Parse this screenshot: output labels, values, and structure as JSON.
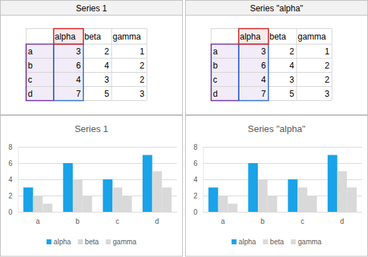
{
  "panels": [
    {
      "header": "Series 1",
      "table": {
        "columns": [
          "alpha",
          "beta",
          "gamma"
        ],
        "rows": [
          [
            "a",
            3,
            2,
            1
          ],
          [
            "b",
            6,
            4,
            2
          ],
          [
            "c",
            4,
            3,
            2
          ],
          [
            "d",
            7,
            5,
            3
          ]
        ]
      }
    },
    {
      "header": "Series \"alpha\"",
      "table": {
        "columns": [
          "alpha",
          "beta",
          "gamma"
        ],
        "rows": [
          [
            "a",
            3,
            2,
            1
          ],
          [
            "b",
            6,
            4,
            2
          ],
          [
            "c",
            4,
            3,
            2
          ],
          [
            "d",
            7,
            5,
            3
          ]
        ]
      }
    }
  ],
  "chart_data": [
    {
      "type": "bar",
      "title": "Series 1",
      "categories": [
        "a",
        "b",
        "c",
        "d"
      ],
      "series": [
        {
          "name": "alpha",
          "color": "#1aa3e8",
          "values": [
            3,
            6,
            4,
            7
          ]
        },
        {
          "name": "beta",
          "color": "#d9d9d9",
          "values": [
            2,
            4,
            3,
            5
          ]
        },
        {
          "name": "gamma",
          "color": "#d9d9d9",
          "values": [
            1,
            2,
            2,
            3
          ]
        }
      ],
      "ylim": [
        0,
        8
      ],
      "yticks": [
        0,
        2,
        4,
        6,
        8
      ],
      "grid": true,
      "legend": "bottom"
    },
    {
      "type": "bar",
      "title": "Series \"alpha\"",
      "categories": [
        "a",
        "b",
        "c",
        "d"
      ],
      "series": [
        {
          "name": "alpha",
          "color": "#1aa3e8",
          "values": [
            3,
            6,
            4,
            7
          ]
        },
        {
          "name": "beta",
          "color": "#d9d9d9",
          "values": [
            2,
            4,
            3,
            5
          ]
        },
        {
          "name": "gamma",
          "color": "#d9d9d9",
          "values": [
            1,
            2,
            2,
            3
          ]
        }
      ],
      "ylim": [
        0,
        8
      ],
      "yticks": [
        0,
        2,
        4,
        6,
        8
      ],
      "grid": true,
      "legend": "bottom"
    }
  ]
}
